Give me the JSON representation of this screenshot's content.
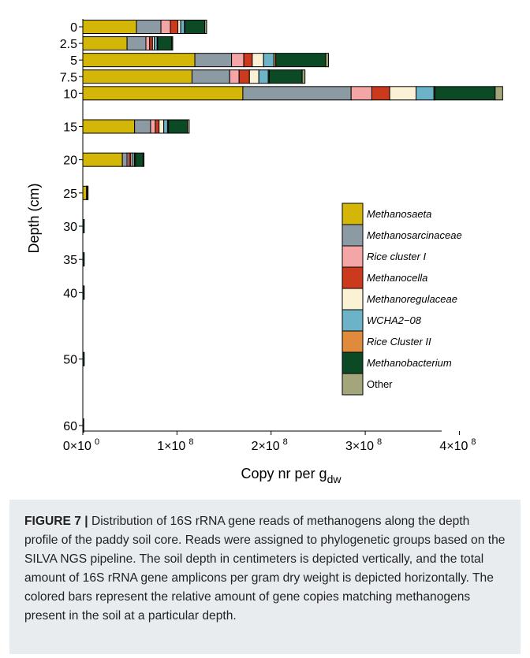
{
  "chart_data": {
    "type": "bar",
    "orientation": "horizontal",
    "stacked": true,
    "ylabel": "Depth (cm)",
    "xlabel_main": "Copy nr per g",
    "xlabel_sub": "dw",
    "xlim": [
      0,
      470000000
    ],
    "y_ticks": [
      "0",
      "2.5",
      "5",
      "7.5",
      "10",
      "15",
      "20",
      "25",
      "30",
      "35",
      "40",
      "50",
      "60"
    ],
    "depths": [
      0,
      2.5,
      5,
      7.5,
      10,
      15,
      20,
      25,
      30,
      35,
      40,
      50,
      60
    ],
    "x_ticks": [
      {
        "value": 0,
        "mant": "0",
        "exp": "0"
      },
      {
        "value": 100000000,
        "mant": "1",
        "exp": "8"
      },
      {
        "value": 200000000,
        "mant": "2",
        "exp": "8"
      },
      {
        "value": 300000000,
        "mant": "3",
        "exp": "8"
      },
      {
        "value": 400000000,
        "mant": "4",
        "exp": "8"
      }
    ],
    "legend_position": "right",
    "series": [
      {
        "name": "Methanosaeta",
        "italic": true,
        "color": "#d4b609",
        "values": [
          57000000,
          47000000,
          119000000,
          116000000,
          170000000,
          55000000,
          42000000,
          4000000,
          0,
          0,
          0,
          0,
          0
        ]
      },
      {
        "name": "Methanosarcinaceae",
        "italic": true,
        "color": "#8c9ba3",
        "values": [
          26000000,
          20000000,
          39000000,
          40000000,
          115000000,
          17000000,
          5000000,
          300000,
          0,
          0,
          0,
          0,
          0
        ]
      },
      {
        "name": "Rice cluster I",
        "italic": true,
        "color": "#f4a6a6",
        "values": [
          10000000,
          4000000,
          13000000,
          10000000,
          22000000,
          5000000,
          2000000,
          0,
          0,
          0,
          0,
          0,
          0
        ]
      },
      {
        "name": "Methanocella",
        "italic": true,
        "color": "#cc3a1e",
        "values": [
          8000000,
          3000000,
          9000000,
          11000000,
          19000000,
          4000000,
          2000000,
          0,
          0,
          0,
          0,
          0,
          0
        ]
      },
      {
        "name": "Methanoregulaceae",
        "italic": true,
        "color": "#fbf2d6",
        "values": [
          3000000,
          2000000,
          12000000,
          10000000,
          28000000,
          5000000,
          2000000,
          0,
          0,
          0,
          0,
          0,
          0
        ]
      },
      {
        "name": "WCHA2−08",
        "italic": true,
        "color": "#6db3c8",
        "values": [
          4000000,
          3000000,
          11000000,
          10000000,
          19000000,
          4000000,
          2000000,
          0,
          0,
          0,
          0,
          0,
          0
        ]
      },
      {
        "name": "Rice Cluster II",
        "italic": true,
        "color": "#e08a3c",
        "values": [
          500000,
          500000,
          2000000,
          1000000,
          1000000,
          1000000,
          1000000,
          0,
          0,
          0,
          0,
          0,
          0
        ]
      },
      {
        "name": "Methanobacterium",
        "italic": true,
        "color": "#0c4a26",
        "values": [
          21000000,
          15000000,
          53000000,
          35000000,
          64000000,
          20000000,
          8000000,
          300000,
          1500000,
          1500000,
          1500000,
          1500000,
          1000000
        ]
      },
      {
        "name": "Other",
        "italic": false,
        "color": "#a3a57a",
        "values": [
          2000000,
          1000000,
          3000000,
          3000000,
          8000000,
          2000000,
          1000000,
          1000000,
          0,
          0,
          0,
          0,
          0
        ]
      }
    ]
  },
  "caption": {
    "label": "FIGURE 7 |",
    "text": " Distribution of 16S rRNA gene reads of methanogens along the depth profile of the paddy soil core. Reads were assigned to phylogenetic groups based on the SILVA NGS pipeline. The soil depth in centimeters is depicted vertically, and the total amount of 16S rRNA gene amplicons per gram dry weight is depicted horizontally. The colored bars represent the relative amount of gene copies matching methanogens present in the soil at a particular depth."
  }
}
